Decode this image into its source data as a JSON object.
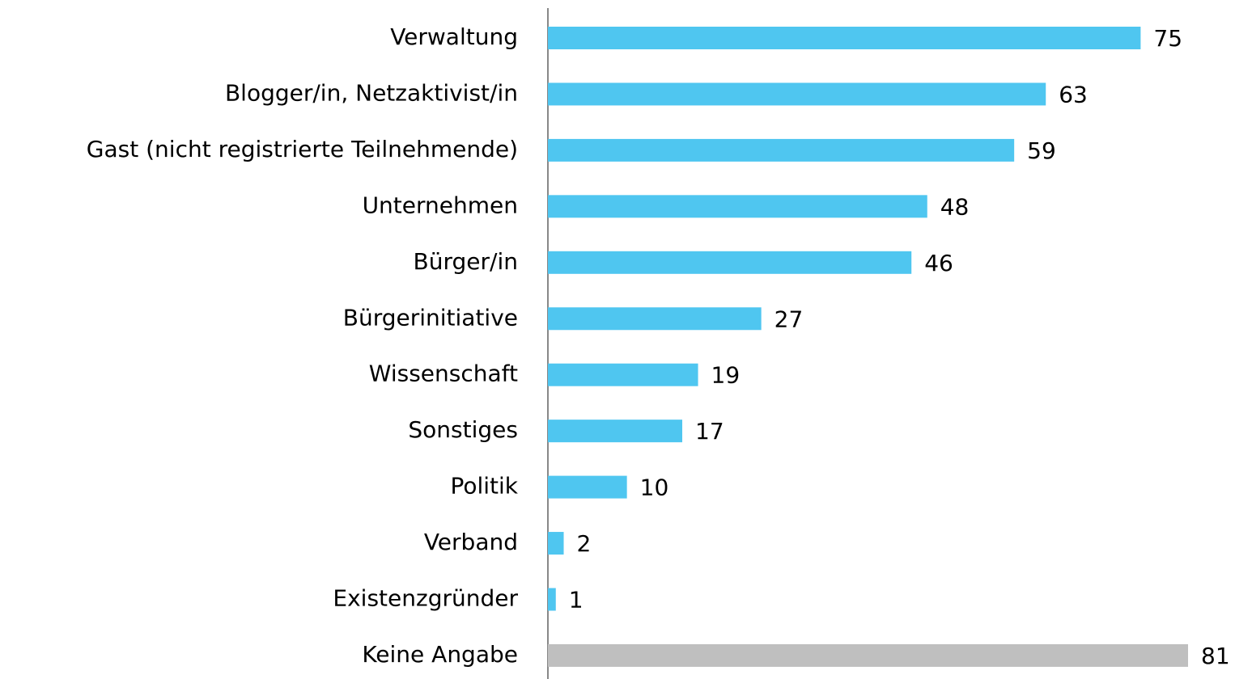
{
  "chart_data": {
    "type": "bar",
    "orientation": "horizontal",
    "categories": [
      "Verwaltung",
      "Blogger/in, Netzaktivist/in",
      "Gast (nicht registrierte Teilnehmende)",
      "Unternehmen",
      "Bürger/in",
      "Bürgerinitiative",
      "Wissenschaft",
      "Sonstiges",
      "Politik",
      "Verband",
      "Existenzgründer",
      "Keine Angabe"
    ],
    "values": [
      75,
      63,
      59,
      48,
      46,
      27,
      19,
      17,
      10,
      2,
      1,
      81
    ],
    "colors": [
      "#4fc6f0",
      "#4fc6f0",
      "#4fc6f0",
      "#4fc6f0",
      "#4fc6f0",
      "#4fc6f0",
      "#4fc6f0",
      "#4fc6f0",
      "#4fc6f0",
      "#4fc6f0",
      "#4fc6f0",
      "#bfbfbf"
    ]
  }
}
